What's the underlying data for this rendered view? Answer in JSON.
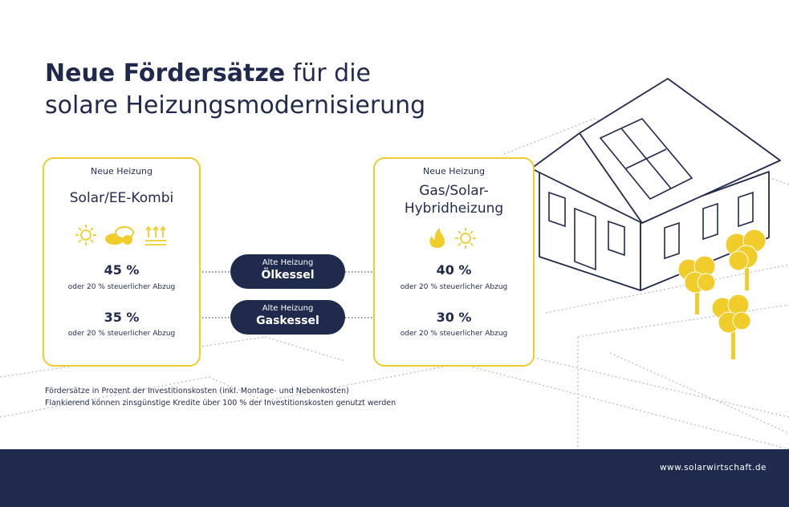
{
  "title": {
    "bold": "Neue Fördersätze",
    "rest": "für die",
    "line2": "solare Heizungsmodernisierung"
  },
  "left_card": {
    "label": "Neue Heizung",
    "heading": "Solar/EE-Kombi",
    "icons": [
      "sun-icon",
      "biomass-icon",
      "heat-pump-icon"
    ],
    "rows": [
      {
        "pct": "45 %",
        "tax": "oder 20 % steuerlicher Abzug"
      },
      {
        "pct": "35 %",
        "tax": "oder 20 % steuerlicher Abzug"
      }
    ]
  },
  "right_card": {
    "label": "Neue Heizung",
    "heading_line1": "Gas/Solar-",
    "heading_line2": "Hybridheizung",
    "icons": [
      "flame-icon",
      "sun-icon"
    ],
    "rows": [
      {
        "pct": "40 %",
        "tax": "oder 20 % steuerlicher Abzug"
      },
      {
        "pct": "30 %",
        "tax": "oder 20 % steuerlicher Abzug"
      }
    ]
  },
  "old_heating": [
    {
      "label": "Alte Heizung",
      "name": "Ölkessel"
    },
    {
      "label": "Alte Heizung",
      "name": "Gaskessel"
    }
  ],
  "footnotes": [
    "Fördersätze in Prozent der Investitionskosten (inkl. Montage- und Nebenkosten)",
    "Flankierend können zinsgünstige Kredite über 100 % der Investitionskosten genutzt werden"
  ],
  "footer_url": "www.solarwirtschaft.de",
  "colors": {
    "navy": "#1f2a4d",
    "yellow": "#f0cd2a"
  }
}
